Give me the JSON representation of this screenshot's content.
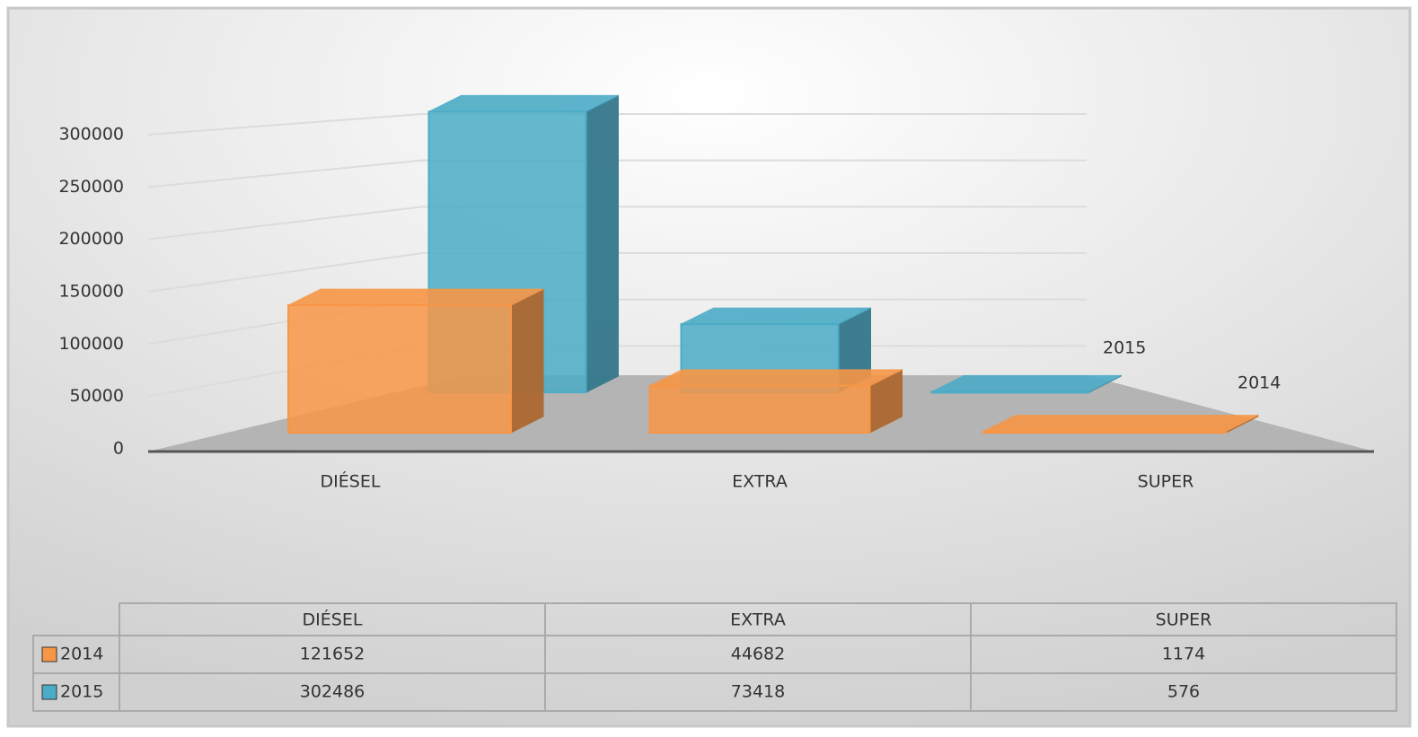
{
  "chart_data": {
    "type": "bar3d",
    "categories": [
      "DIÉSEL",
      "EXTRA",
      "SUPER"
    ],
    "series": [
      {
        "name": "2014",
        "color": "#f79646",
        "values": [
          121652,
          44682,
          1174
        ]
      },
      {
        "name": "2015",
        "color": "#4bacc6",
        "values": [
          302486,
          73418,
          576
        ]
      }
    ],
    "ylim": [
      0,
      300000
    ],
    "yticks": [
      0,
      50000,
      100000,
      150000,
      200000,
      250000,
      300000
    ],
    "grid": true,
    "data_table": true
  }
}
